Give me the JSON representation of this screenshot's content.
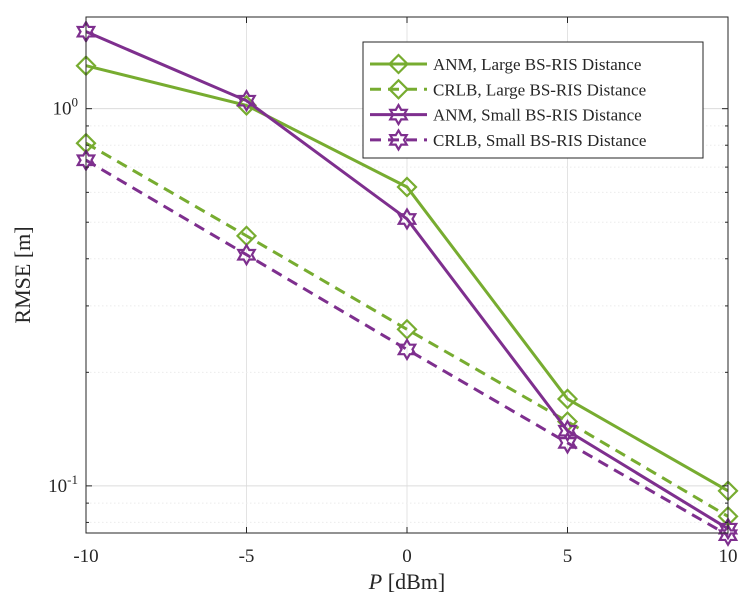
{
  "chart_data": {
    "type": "line",
    "title": "",
    "xlabel_italic": "P",
    "xlabel_rest": " [dBm]",
    "ylabel": "RMSE [m]",
    "x": [
      -10,
      -5,
      0,
      5,
      10
    ],
    "xlim": [
      -10,
      10
    ],
    "ylim": [
      0.075,
      1.75
    ],
    "yscale": "log",
    "grid": true,
    "legend_position": "top-right",
    "x_ticks": [
      {
        "value": -10,
        "label": "-10"
      },
      {
        "value": -5,
        "label": "-5"
      },
      {
        "value": 0,
        "label": "0"
      },
      {
        "value": 5,
        "label": "5"
      },
      {
        "value": 10,
        "label": "10"
      }
    ],
    "y_ticks": [
      {
        "value": 1,
        "base": "10",
        "exp": "0"
      },
      {
        "value": 0.1,
        "base": "10",
        "exp": "-1"
      }
    ],
    "series": [
      {
        "name": "ANM, Large BS-RIS Distance",
        "values": [
          1.3,
          1.02,
          0.62,
          0.17,
          0.097
        ],
        "color": "#77ac30",
        "dash": "solid",
        "marker": "diamond"
      },
      {
        "name": "CRLB, Large BS-RIS Distance",
        "values": [
          0.81,
          0.46,
          0.26,
          0.148,
          0.083
        ],
        "color": "#77ac30",
        "dash": "dashed",
        "marker": "diamond"
      },
      {
        "name": "ANM, Small BS-RIS Distance",
        "values": [
          1.6,
          1.05,
          0.51,
          0.14,
          0.077
        ],
        "color": "#7e2f8e",
        "dash": "solid",
        "marker": "hexagram"
      },
      {
        "name": "CRLB, Small BS-RIS Distance",
        "values": [
          0.73,
          0.41,
          0.23,
          0.13,
          0.074
        ],
        "color": "#7e2f8e",
        "dash": "dashed",
        "marker": "hexagram"
      }
    ]
  }
}
